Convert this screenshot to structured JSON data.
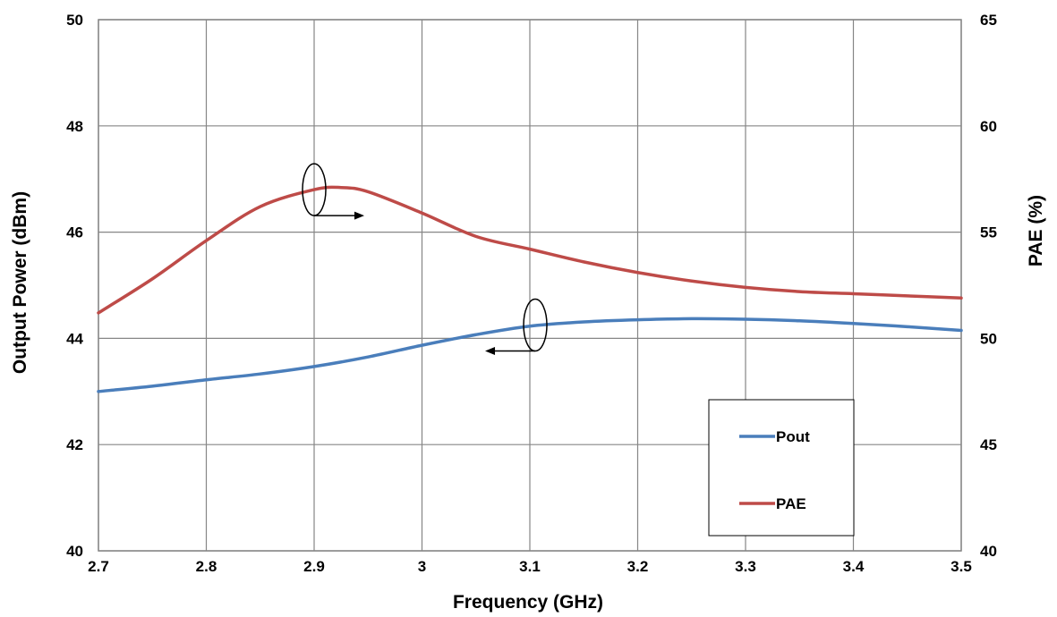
{
  "chart_data": {
    "type": "line",
    "xlabel": "Frequency (GHz)",
    "ylabel": "Output Power  (dBm)",
    "y2label": "PAE (%)",
    "xlim": [
      2.7,
      3.5
    ],
    "ylim": [
      40,
      50
    ],
    "y2lim": [
      40,
      65
    ],
    "x_ticks": [
      "2.7",
      "2.8",
      "2.9",
      "3",
      "3.1",
      "3.2",
      "3.3",
      "3.4",
      "3.5"
    ],
    "y_ticks": [
      "40",
      "42",
      "44",
      "46",
      "48",
      "50"
    ],
    "y2_ticks": [
      "40",
      "45",
      "50",
      "55",
      "60",
      "65"
    ],
    "grid": true,
    "legend_position": "bottom-right",
    "series": [
      {
        "name": "Pout",
        "axis": "left",
        "color": "#4a7ebb",
        "x": [
          2.7,
          2.75,
          2.8,
          2.85,
          2.9,
          2.95,
          3.0,
          3.05,
          3.1,
          3.15,
          3.2,
          3.25,
          3.3,
          3.35,
          3.4,
          3.45,
          3.5
        ],
        "values": [
          43.0,
          43.1,
          43.22,
          43.33,
          43.47,
          43.65,
          43.87,
          44.07,
          44.23,
          44.31,
          44.35,
          44.37,
          44.36,
          44.33,
          44.28,
          44.22,
          44.15
        ]
      },
      {
        "name": "PAE",
        "axis": "right",
        "color": "#be4b48",
        "x": [
          2.7,
          2.75,
          2.8,
          2.85,
          2.9,
          2.925,
          2.95,
          3.0,
          3.05,
          3.1,
          3.15,
          3.2,
          3.25,
          3.3,
          3.35,
          3.4,
          3.45,
          3.5
        ],
        "values": [
          51.2,
          52.8,
          54.6,
          56.2,
          57.0,
          57.1,
          56.9,
          55.9,
          54.8,
          54.2,
          53.6,
          53.1,
          52.7,
          52.4,
          52.2,
          52.1,
          52.0,
          51.9
        ]
      }
    ],
    "annotations": [
      {
        "arrow": "right",
        "points_to": "PAE (%)",
        "x": 2.9,
        "y": 46.8
      },
      {
        "arrow": "left",
        "points_to": "Output Power  (dBm)",
        "x": 3.105,
        "y": 44.25
      }
    ]
  }
}
